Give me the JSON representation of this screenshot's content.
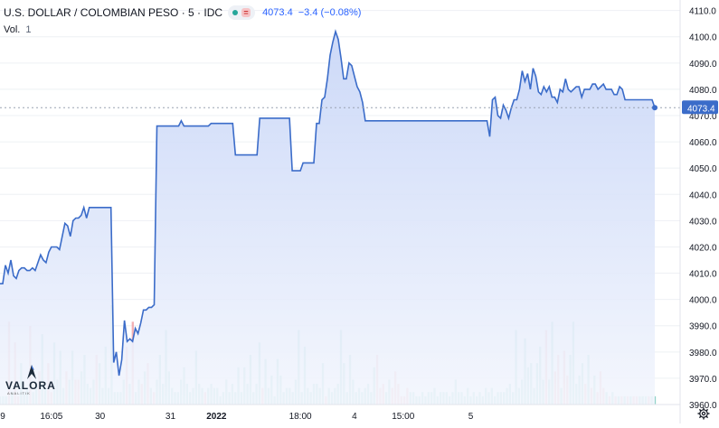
{
  "legend": {
    "symbol": "U.S. DOLLAR / COLOMBIAN PESO · 5 · IDC",
    "price": "4073.4",
    "change": "−3.4 (−0.08%)",
    "vol_label": "Vol.",
    "vol_value": "1"
  },
  "last_price_label": "4073.4",
  "logo": {
    "name": "VALORA",
    "sub": "ANALITIK"
  },
  "colors": {
    "line": "#3b6cc9",
    "area_top": "#c7d5f7",
    "area_bottom": "#f3f6fd",
    "vol_up": "#7fcbbf",
    "vol_down": "#f0a2a6",
    "price_label_bg": "#3b6cc9",
    "grid": "#eef0f4"
  },
  "chart_data": {
    "type": "area",
    "title": "U.S. DOLLAR / COLOMBIAN PESO · 5 · IDC",
    "ylim": [
      3960,
      4114
    ],
    "y_ticks": [
      "4110.0",
      "4100.0",
      "4090.0",
      "4080.0",
      "4070.0",
      "4060.0",
      "4050.0",
      "4040.0",
      "4030.0",
      "4020.0",
      "4010.0",
      "4000.0",
      "3990.0",
      "3980.0",
      "3970.0",
      "3960.0"
    ],
    "x_ticks": [
      {
        "label": "9",
        "index": 1
      },
      {
        "label": "16:05",
        "index": 19
      },
      {
        "label": "30",
        "index": 37
      },
      {
        "label": "31",
        "index": 63
      },
      {
        "label": "2022",
        "index": 80
      },
      {
        "label": "18:00",
        "index": 111
      },
      {
        "label": "4",
        "index": 131
      },
      {
        "label": "15:00",
        "index": 149
      },
      {
        "label": "5",
        "index": 174
      }
    ],
    "series": [
      {
        "values": [
          4006,
          4006,
          4013,
          4010,
          4015,
          4009,
          4008,
          4011,
          4012,
          4012,
          4011,
          4011,
          4012,
          4011,
          4014,
          4017,
          4015,
          4014,
          4018,
          4020,
          4020,
          4020,
          4019,
          4024,
          4029,
          4028,
          4024,
          4030,
          4031,
          4031,
          4032,
          4035,
          4031,
          4035,
          4035,
          4035,
          4035,
          4035,
          4035,
          4035,
          4035,
          4035,
          3976,
          3980,
          3971,
          3977,
          3992,
          3984,
          3985,
          3984,
          3989,
          3987,
          3991,
          3996,
          3996,
          3997,
          3997,
          3998,
          4066,
          4066,
          4066,
          4066,
          4066,
          4066,
          4066,
          4066,
          4066,
          4068,
          4066,
          4066,
          4066,
          4066,
          4066,
          4066,
          4066,
          4066,
          4066,
          4066,
          4067,
          4067,
          4067,
          4067,
          4067,
          4067,
          4067,
          4067,
          4067,
          4055,
          4055,
          4055,
          4055,
          4055,
          4055,
          4055,
          4055,
          4055,
          4069,
          4069,
          4069,
          4069,
          4069,
          4069,
          4069,
          4069,
          4069,
          4069,
          4069,
          4069,
          4049,
          4049,
          4049,
          4049,
          4052,
          4052,
          4052,
          4052,
          4052,
          4067,
          4067,
          4076,
          4077,
          4084,
          4093,
          4098,
          4102,
          4099,
          4092,
          4084,
          4084,
          4090,
          4089,
          4085,
          4081,
          4079,
          4075,
          4068,
          4068,
          4068,
          4068,
          4068,
          4068,
          4068,
          4068,
          4068,
          4068,
          4068,
          4068,
          4068,
          4068,
          4068,
          4068,
          4068,
          4068,
          4068,
          4068,
          4068,
          4068,
          4068,
          4068,
          4068,
          4068,
          4068,
          4068,
          4068,
          4068,
          4068,
          4068,
          4068,
          4068,
          4068,
          4068,
          4068,
          4068,
          4068,
          4068,
          4068,
          4068,
          4068,
          4068,
          4068,
          4068,
          4062,
          4076,
          4077,
          4070,
          4069,
          4074,
          4072,
          4069,
          4073,
          4076,
          4076,
          4080,
          4087,
          4083,
          4086,
          4080,
          4088,
          4085,
          4079,
          4078,
          4081,
          4079,
          4081,
          4077,
          4077,
          4075,
          4080,
          4079,
          4084,
          4080,
          4079,
          4080,
          4081,
          4081,
          4077,
          4080,
          4080,
          4080,
          4082,
          4082,
          4080,
          4081,
          4082,
          4080,
          4080,
          4080,
          4078,
          4078,
          4081,
          4080,
          4076,
          4076,
          4076,
          4076,
          4076,
          4076,
          4076,
          4076,
          4076,
          4076,
          4076,
          4073
        ]
      }
    ],
    "volume": {
      "values": [
        2,
        2,
        2,
        20,
        3,
        15,
        2,
        10,
        3,
        4,
        19,
        3,
        5,
        8,
        17,
        4,
        10,
        3,
        15,
        6,
        13,
        4,
        8,
        6,
        13,
        6,
        6,
        8,
        12,
        5,
        4,
        6,
        12,
        10,
        4,
        14,
        4,
        24,
        3,
        3,
        3,
        6,
        14,
        5,
        20,
        3,
        6,
        5,
        8,
        10,
        4,
        3,
        6,
        12,
        5,
        18,
        8,
        4,
        3,
        3,
        6,
        9,
        5,
        3,
        4,
        13,
        5,
        4,
        3,
        4,
        5,
        4,
        4,
        2,
        3,
        6,
        3,
        5,
        3,
        9,
        3,
        9,
        5,
        12,
        3,
        5,
        15,
        4,
        11,
        4,
        7,
        2,
        11,
        7,
        3,
        4,
        4,
        3,
        6,
        18,
        3,
        14,
        4,
        3,
        5,
        5,
        4,
        10,
        2,
        4,
        3,
        4,
        5,
        18,
        10,
        3,
        12,
        6,
        3,
        4,
        3,
        4,
        5,
        3,
        9,
        12,
        4,
        5,
        3,
        6,
        4,
        8,
        5,
        2,
        2,
        4,
        3,
        3,
        2,
        2,
        3,
        2,
        3,
        3,
        4,
        2,
        3,
        3,
        3,
        2,
        3,
        6,
        3,
        3,
        2,
        4,
        2,
        3,
        2,
        3,
        2,
        4,
        3,
        4,
        2,
        3,
        3,
        3,
        4,
        5,
        3,
        18,
        4,
        6,
        16,
        9,
        10,
        4,
        10,
        14,
        6,
        18,
        6,
        20,
        8,
        12,
        4,
        13,
        7,
        12,
        20,
        5,
        7,
        10,
        5,
        12,
        4,
        7,
        3,
        8,
        4,
        3,
        2,
        3,
        2,
        2,
        2,
        2,
        2,
        2,
        2,
        2,
        2,
        2,
        2,
        2,
        2,
        2
      ],
      "direction": "mixed"
    }
  }
}
